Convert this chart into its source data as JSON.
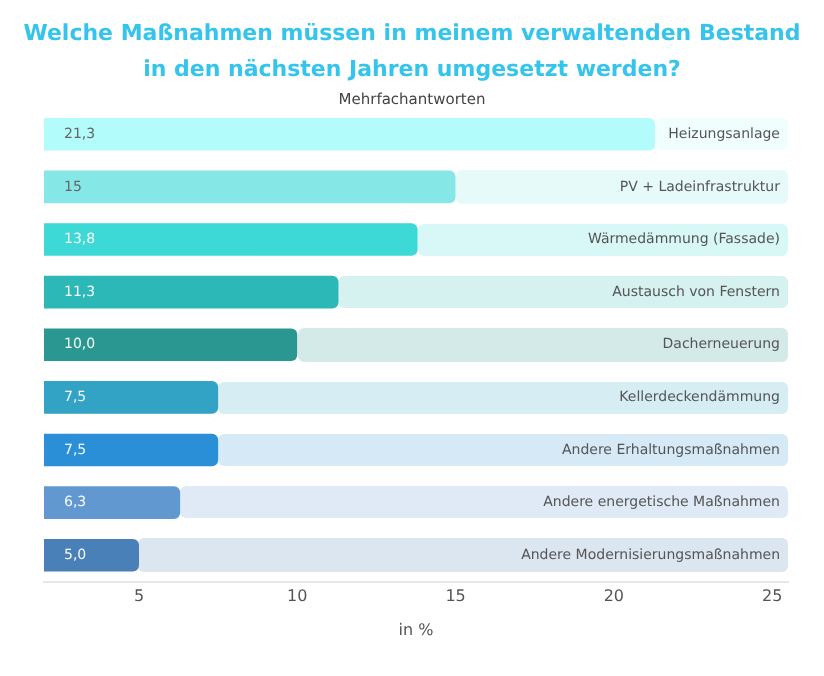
{
  "chart_data": {
    "type": "bar",
    "orientation": "horizontal",
    "title": "Welche Maßnahmen müssen in meinem verwaltenden Bestand in den nächsten Jahren umgesetzt werden?",
    "subtitle": "Mehrfachantworten",
    "xlabel": "in %",
    "categories": [
      "Heizungsanlage",
      "PV + Ladeinfrastruktur",
      "Wärmedämmung (Fassade)",
      "Austausch von Fenstern",
      "Dacherneuerung",
      "Kellerdeckendämmung",
      "Andere Erhaltungsmaßnahmen",
      "Andere energetische Maßnahmen",
      "Andere Modernisierungsmaßnahmen"
    ],
    "values": [
      21.3,
      15,
      13.8,
      11.3,
      10.0,
      7.5,
      7.5,
      6.3,
      5.0
    ],
    "value_labels": [
      "21,3",
      "15",
      "13,8",
      "11,3",
      "10,0",
      "7,5",
      "7,5",
      "6,3",
      "5,0"
    ],
    "colors": [
      "#b3fcfc",
      "#86e8e6",
      "#3dd9d6",
      "#2bb8b6",
      "#2a9790",
      "#32a3c4",
      "#2b8fd8",
      "#6198d0",
      "#4a80b8"
    ],
    "xlim": [
      2,
      25.5
    ],
    "xticks": [
      5,
      10,
      15,
      20,
      25
    ],
    "grid": false,
    "legend": false
  }
}
